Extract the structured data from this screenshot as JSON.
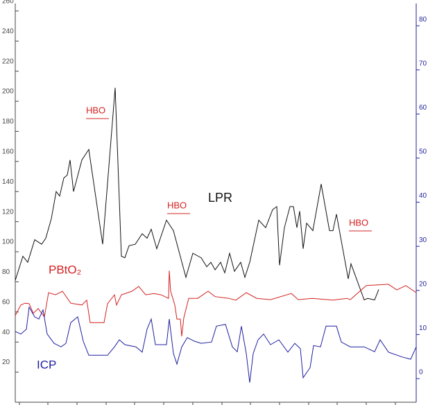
{
  "chart_data": {
    "type": "line",
    "xlim": [
      22,
      600
    ],
    "ylim": [
      0,
      265
    ],
    "yticks": [
      20,
      40,
      60,
      80,
      100,
      120,
      140,
      160,
      180,
      200,
      220,
      240,
      260
    ],
    "y2lim": [
      -5.35,
      85.06
    ],
    "y2ticks": [
      0,
      10,
      20,
      30,
      40,
      50,
      60,
      70,
      80
    ],
    "xticks": [
      28,
      69,
      111,
      153,
      194,
      236,
      278,
      320,
      361,
      403,
      445,
      486,
      528,
      570
    ],
    "annotations": [
      "HBO",
      "HBO",
      "HBO"
    ],
    "series": [
      {
        "name": "LPR",
        "color": "#111111",
        "x": [
          22,
          33,
          40,
          50,
          60,
          66,
          74,
          81,
          86,
          92,
          97,
          101,
          106,
          118,
          128,
          148,
          166,
          175,
          180,
          186,
          195,
          205,
          212,
          218,
          226,
          240,
          250,
          268,
          278,
          290,
          298,
          304,
          310,
          318,
          324,
          331,
          338,
          347,
          353,
          360,
          373,
          383,
          393,
          399,
          403,
          410,
          418,
          423,
          428,
          432,
          437,
          442,
          451,
          463,
          475,
          480,
          485,
          502,
          506,
          525,
          530,
          540,
          546
        ],
        "values": [
          81,
          97,
          93,
          108,
          105,
          109,
          122,
          140,
          137,
          149,
          151,
          161,
          140,
          161,
          168,
          105,
          209,
          97,
          96,
          104,
          105,
          112,
          109,
          115,
          102,
          121,
          114,
          83,
          99,
          96,
          90,
          93,
          88,
          93,
          86,
          99,
          87,
          93,
          83,
          93,
          121,
          116,
          128,
          130,
          91,
          116,
          130,
          130,
          116,
          127,
          102,
          119,
          114,
          145,
          114,
          114,
          125,
          82,
          92,
          68,
          69,
          68,
          75
        ]
      },
      {
        "name": "PBtO₂",
        "color": "#d42020",
        "axis": "y2",
        "x": [
          22,
          30,
          36,
          42,
          48,
          55,
          64,
          70,
          80,
          90,
          102,
          118,
          125,
          130,
          150,
          155,
          165,
          168,
          175,
          190,
          200,
          210,
          222,
          232,
          243,
          244,
          246,
          252,
          255,
          260,
          262,
          265,
          272,
          285,
          300,
          310,
          330,
          340,
          355,
          370,
          390,
          420,
          430,
          450,
          480,
          500,
          505,
          528,
          560,
          572,
          585,
          600
        ],
        "values": [
          14.3,
          16.7,
          17.1,
          17,
          14.8,
          15.9,
          14,
          19.5,
          19,
          19.8,
          17.1,
          16.7,
          17.8,
          12.7,
          12.7,
          17,
          19,
          16.7,
          19,
          19.8,
          20.9,
          19,
          19.3,
          19,
          18.2,
          24.5,
          19.8,
          16.7,
          13.5,
          13.5,
          9.6,
          13.8,
          18.2,
          18.2,
          19.8,
          18.6,
          18.2,
          17.8,
          19.5,
          18.2,
          17.9,
          19.3,
          17.9,
          18.2,
          17.8,
          18.2,
          17.9,
          21.1,
          21.4,
          20.1,
          21.1,
          19.5
        ]
      },
      {
        "name": "ICP",
        "color": "#1e1ea0",
        "axis": "y2",
        "x": [
          22,
          30,
          38,
          42,
          50,
          56,
          62,
          68,
          78,
          88,
          95,
          102,
          112,
          120,
          128,
          155,
          165,
          172,
          180,
          196,
          205,
          212,
          218,
          224,
          240,
          244,
          250,
          255,
          262,
          270,
          280,
          290,
          305,
          312,
          325,
          335,
          342,
          348,
          355,
          360,
          365,
          372,
          380,
          390,
          402,
          415,
          425,
          433,
          437,
          447,
          452,
          462,
          470,
          485,
          492,
          505,
          525,
          540,
          548,
          560,
          580,
          592,
          600
        ],
        "values": [
          10.7,
          10.1,
          11.2,
          16.2,
          14,
          13.5,
          15.6,
          10.1,
          8,
          7.2,
          8,
          12.7,
          14,
          8.5,
          5.3,
          5.3,
          7.2,
          8.8,
          7.7,
          7.2,
          6,
          11.2,
          13.5,
          7.7,
          7.7,
          13.5,
          5.7,
          3.3,
          7.2,
          9.3,
          8.5,
          8,
          8.3,
          11.9,
          12.3,
          7.2,
          6.1,
          11.9,
          5.7,
          -0.9,
          5.7,
          8.8,
          10.1,
          7.7,
          8.8,
          6,
          8,
          6.8,
          0.2,
          2.5,
          7.5,
          7.2,
          11.9,
          11.9,
          8.3,
          7.2,
          7.2,
          6.1,
          8.8,
          6,
          4.9,
          4.4,
          7.2
        ]
      }
    ]
  }
}
